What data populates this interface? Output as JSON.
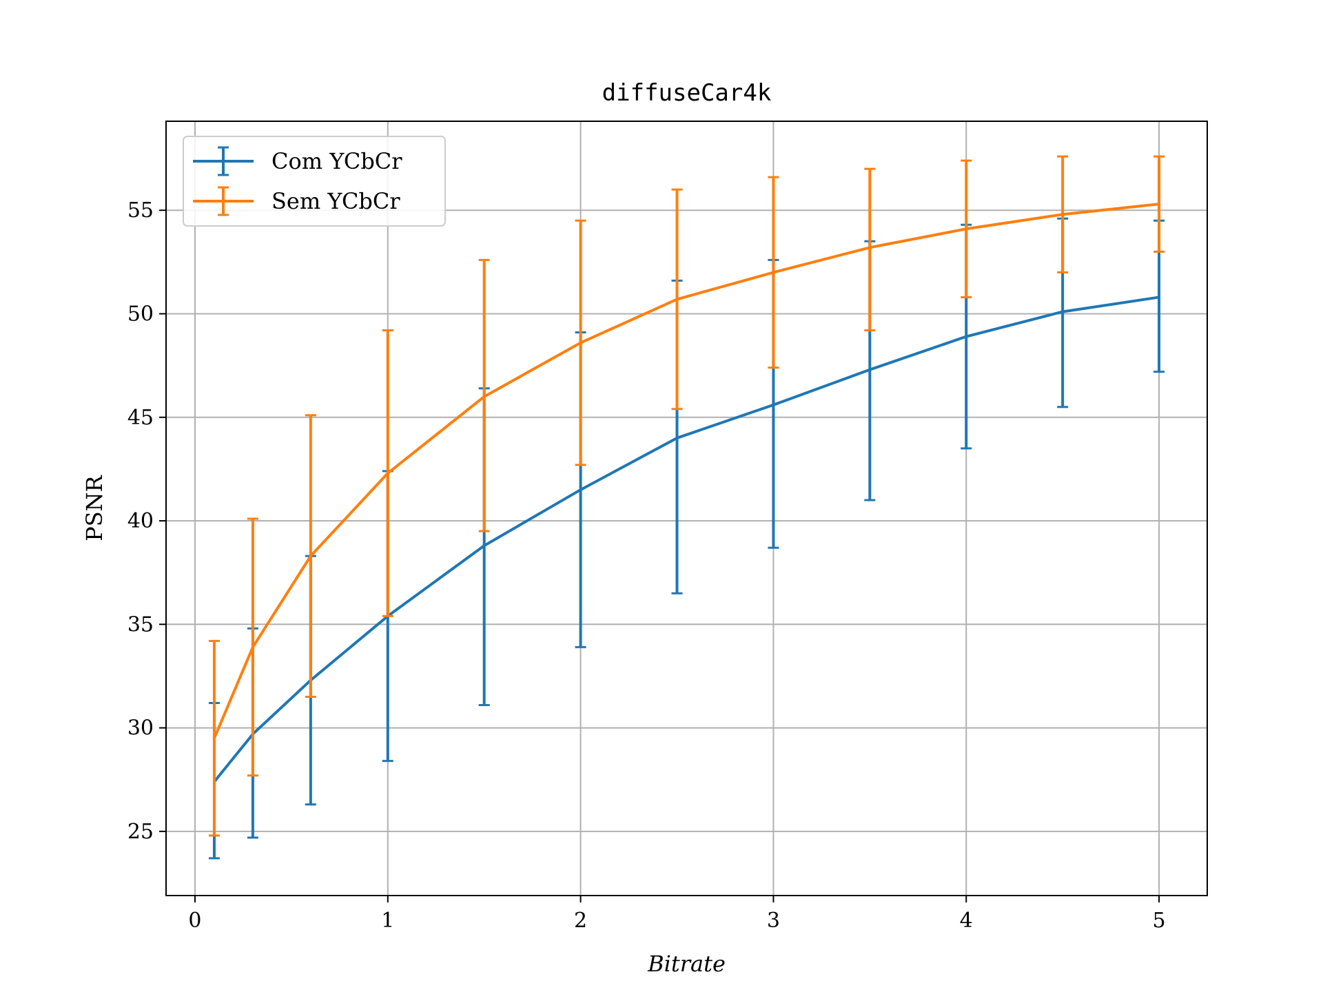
{
  "chart_data": {
    "type": "line",
    "title": "diffuseCar4k",
    "xlabel": "Bitrate",
    "ylabel": "PSNR",
    "xlim": [
      -0.15,
      5.25
    ],
    "ylim": [
      21.9,
      59.3
    ],
    "xticks": [
      0,
      1,
      2,
      3,
      4,
      5
    ],
    "yticks": [
      25,
      30,
      35,
      40,
      45,
      50,
      55
    ],
    "grid": true,
    "legend_position": "top-left",
    "x": [
      0.1,
      0.3,
      0.6,
      1.0,
      1.5,
      2.0,
      2.5,
      3.0,
      3.5,
      4.0,
      4.5,
      5.0
    ],
    "series": [
      {
        "name": "Com YCbCr",
        "color": "#1f77b4",
        "values": [
          27.4,
          29.7,
          32.3,
          35.4,
          38.8,
          41.5,
          44.0,
          45.6,
          47.3,
          48.9,
          50.1,
          50.8
        ],
        "err_lower": [
          23.7,
          24.7,
          26.3,
          28.4,
          31.1,
          33.9,
          36.5,
          38.7,
          41.0,
          43.5,
          45.5,
          47.2
        ],
        "err_upper": [
          31.2,
          34.8,
          38.3,
          42.4,
          46.4,
          49.1,
          51.6,
          52.6,
          53.5,
          54.3,
          54.6,
          54.5
        ]
      },
      {
        "name": "Sem YCbCr",
        "color": "#ff7f0e",
        "values": [
          29.5,
          33.9,
          38.3,
          42.3,
          46.0,
          48.6,
          50.7,
          52.0,
          53.2,
          54.1,
          54.8,
          55.3
        ],
        "err_lower": [
          24.8,
          27.7,
          31.5,
          35.4,
          39.5,
          42.7,
          45.4,
          47.4,
          49.2,
          50.8,
          52.0,
          53.0
        ],
        "err_upper": [
          34.2,
          40.1,
          45.1,
          49.2,
          52.6,
          54.5,
          56.0,
          56.6,
          57.0,
          57.4,
          57.6,
          57.6
        ]
      }
    ]
  }
}
